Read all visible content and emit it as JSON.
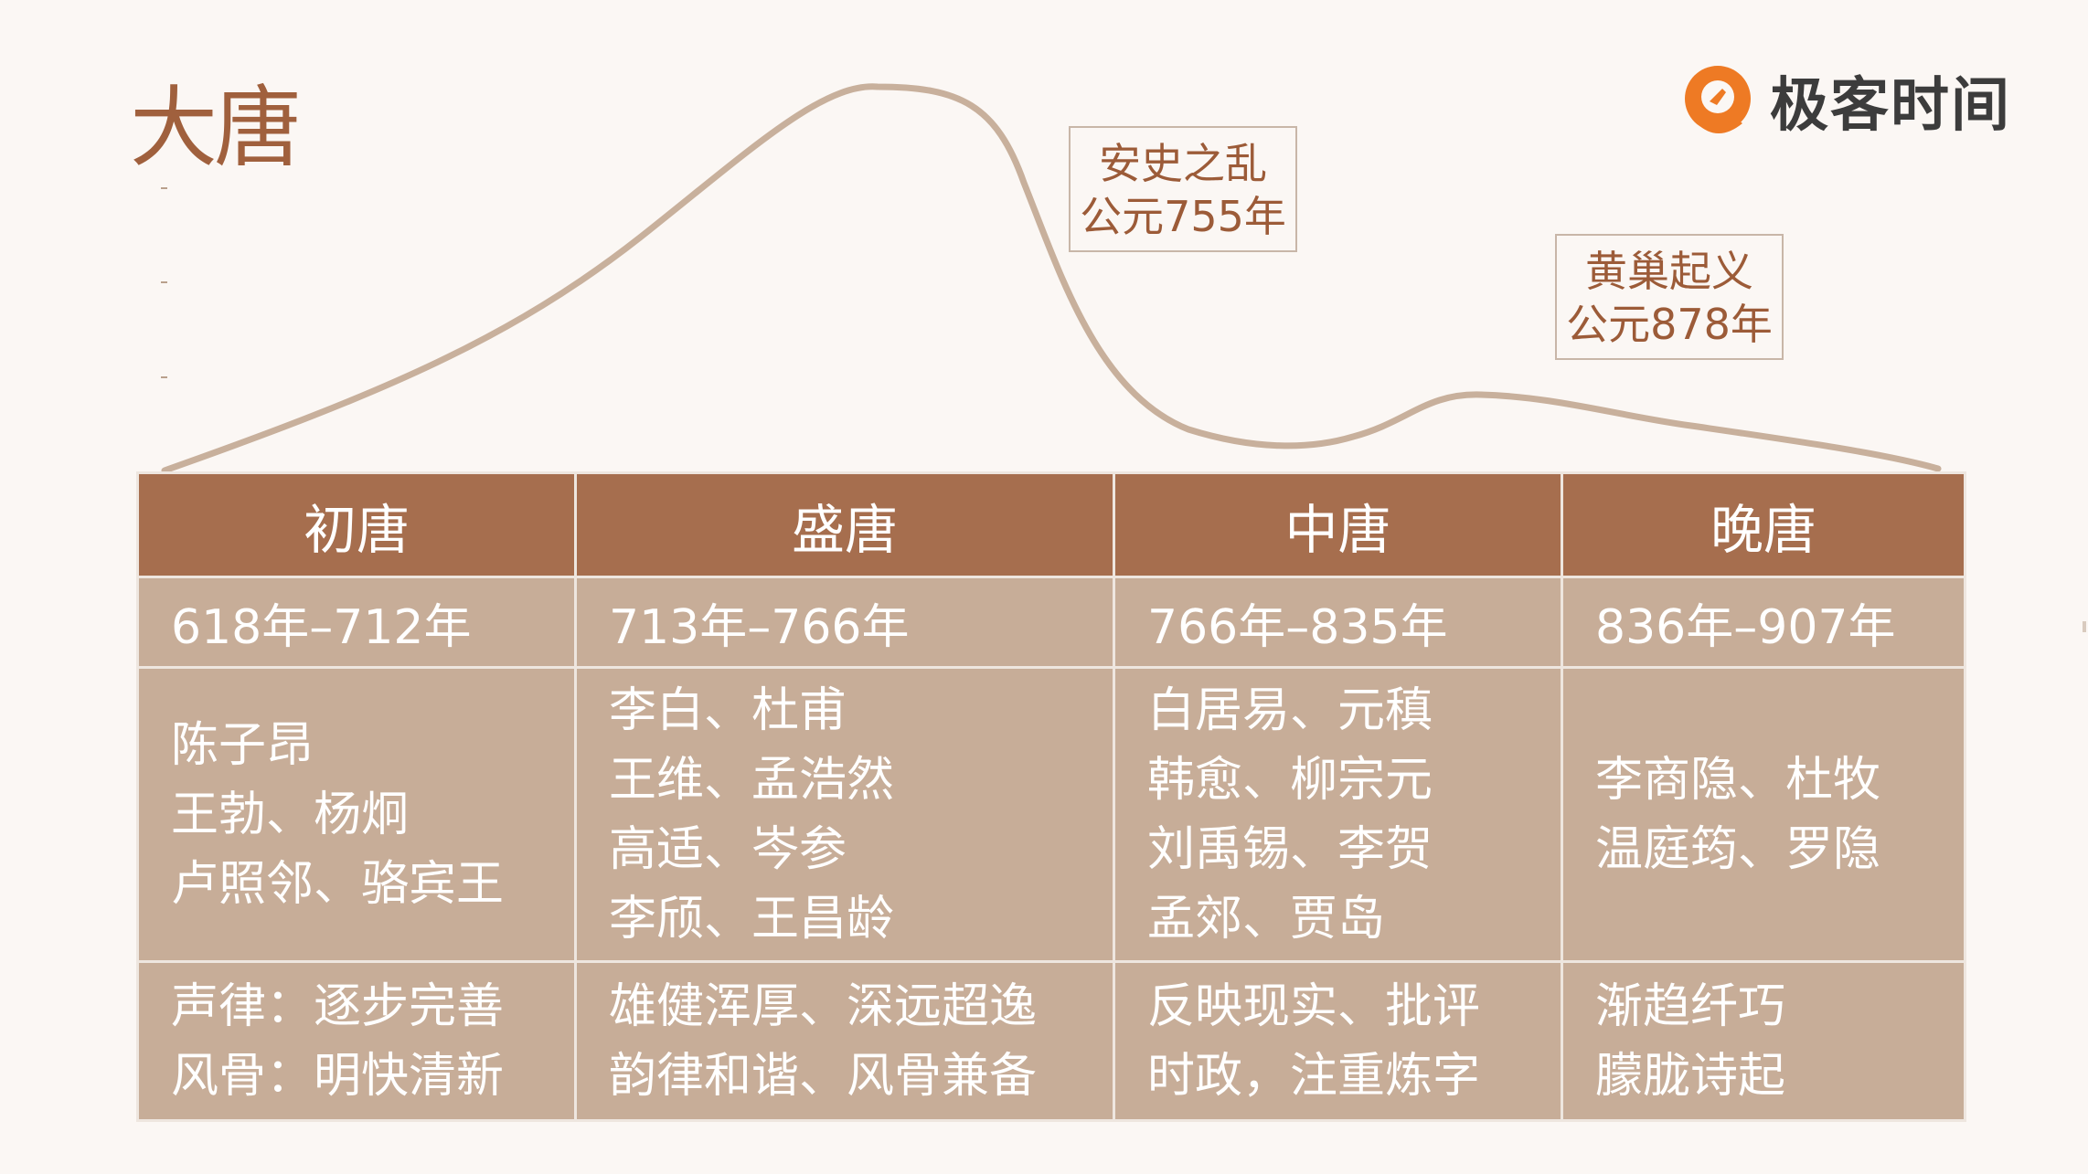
{
  "title": "大唐",
  "logo": {
    "text": "极客时间",
    "icon": "geek-time-logo-icon",
    "mark_color": "#ee7a24"
  },
  "curve": {
    "series_label": "",
    "description_points_in_percent_of_era": [
      {
        "era": "初唐",
        "level": 0.05
      },
      {
        "era": "盛唐",
        "level": 1.0
      },
      {
        "era": "中唐",
        "level": 0.18
      },
      {
        "era": "晚唐",
        "level": 0.05
      }
    ]
  },
  "events": [
    {
      "name": "安史之乱",
      "year": "公元755年"
    },
    {
      "name": "黄巢起义",
      "year": "公元878年"
    }
  ],
  "table": {
    "headers": [
      "初唐",
      "盛唐",
      "中唐",
      "晚唐"
    ],
    "years": [
      "618年–712年",
      "713年–766年",
      "766年–835年",
      "836年–907年"
    ],
    "poets": [
      [
        "陈子昂",
        "王勃、杨炯",
        "卢照邻、骆宾王"
      ],
      [
        "李白、杜甫",
        "王维、孟浩然",
        "高适、岑参",
        "李颀、王昌龄"
      ],
      [
        "白居易、元稹",
        "韩愈、柳宗元",
        "刘禹锡、李贺",
        "孟郊、贾岛"
      ],
      [
        "李商隐、杜牧",
        "温庭筠、罗隐"
      ]
    ],
    "styles": [
      [
        "声律：逐步完善",
        "风骨：明快清新"
      ],
      [
        "雄健浑厚、深远超逸",
        "韵律和谐、风骨兼备"
      ],
      [
        "反映现实、批评",
        "时政，注重炼字"
      ],
      [
        "渐趋纤巧",
        "朦胧诗起"
      ]
    ]
  },
  "colors": {
    "header_bg": "#a66e4e",
    "cell_bg": "#c7ad98",
    "curve": "#c8b09c",
    "title": "#a0603d",
    "event_text": "#9c5b38"
  }
}
